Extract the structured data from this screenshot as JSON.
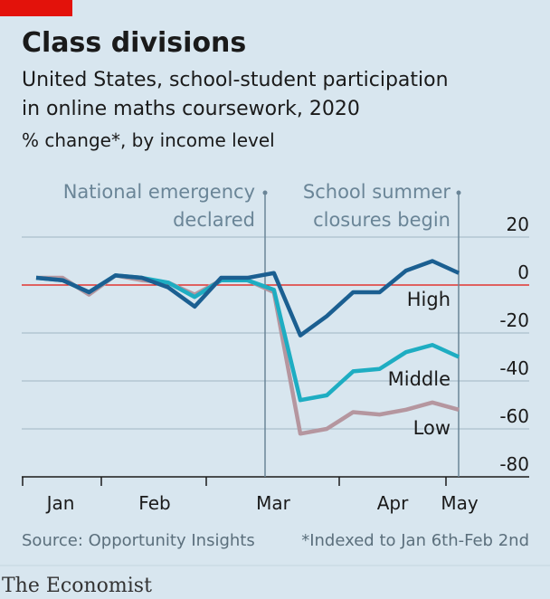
{
  "chart_data": {
    "type": "line",
    "title": "Class divisions",
    "subtitle": [
      "United States, school-student participation",
      "in online maths coursework, 2020"
    ],
    "unit_label": "% change*, by income level",
    "month_labels": [
      "Jan",
      "Feb",
      "Mar",
      "Apr",
      "May"
    ],
    "series": [
      {
        "name": "Low",
        "color": "#b5969f",
        "values": [
          3,
          3,
          -4,
          4,
          2,
          1,
          -4,
          2,
          2,
          -3,
          -62,
          -60,
          -53,
          -54,
          -52,
          -49,
          -52
        ]
      },
      {
        "name": "Middle",
        "color": "#1eadc2",
        "values": [
          3,
          2,
          -3,
          4,
          3,
          1,
          -5,
          2,
          2,
          -2,
          -48,
          -46,
          -36,
          -35,
          -28,
          -25,
          -30
        ]
      },
      {
        "name": "High",
        "color": "#1b5f91",
        "values": [
          3,
          2,
          -3,
          4,
          3,
          -1,
          -9,
          3,
          3,
          5,
          -21,
          -13,
          -3,
          -3,
          6,
          10,
          5
        ]
      }
    ],
    "ylim": [
      -80,
      20
    ],
    "yticks": [
      20,
      0,
      -20,
      -40,
      -60,
      -80
    ],
    "grid": true,
    "zero_line_color": "#e3120b",
    "annotations": [
      {
        "lines": [
          "National emergency",
          "declared"
        ]
      },
      {
        "lines": [
          "School summer",
          "closures begin"
        ]
      }
    ],
    "source": "Source: Opportunity Insights",
    "footnote": "*Indexed to Jan 6th-Feb 2nd",
    "brand": "The Economist"
  }
}
